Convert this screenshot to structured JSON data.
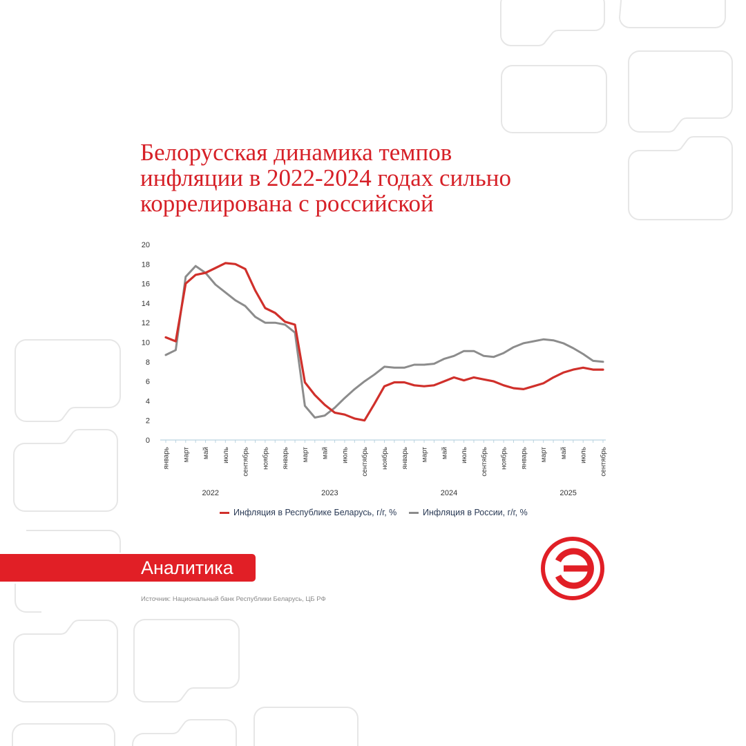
{
  "title_lines": [
    "Белорусская динамика темпов",
    "инфляции в 2022-2024 годах сильно",
    "коррелирована с российской"
  ],
  "badge": "Аналитика",
  "source": "Источник: Национальный банк Республики Беларусь, ЦБ РФ",
  "logo_icon": "e-logo-icon",
  "colors": {
    "belarus": "#d0302b",
    "russia": "#8c8c8c",
    "accent": "#e11f26",
    "title": "#d62027",
    "axis": "#b9d3e0"
  },
  "chart_data": {
    "type": "line",
    "ylim": [
      0,
      20
    ],
    "yticks": [
      0,
      2,
      4,
      6,
      8,
      10,
      12,
      14,
      16,
      18,
      20
    ],
    "month_ticks": [
      {
        "index": 0,
        "label": "январь"
      },
      {
        "index": 2,
        "label": "март"
      },
      {
        "index": 4,
        "label": "май"
      },
      {
        "index": 6,
        "label": "июль"
      },
      {
        "index": 8,
        "label": "сентябрь"
      },
      {
        "index": 10,
        "label": "ноябрь"
      },
      {
        "index": 12,
        "label": "январь"
      },
      {
        "index": 14,
        "label": "март"
      },
      {
        "index": 16,
        "label": "май"
      },
      {
        "index": 18,
        "label": "июль"
      },
      {
        "index": 20,
        "label": "сентябрь"
      },
      {
        "index": 22,
        "label": "ноябрь"
      },
      {
        "index": 24,
        "label": "январь"
      },
      {
        "index": 26,
        "label": "март"
      },
      {
        "index": 28,
        "label": "май"
      },
      {
        "index": 30,
        "label": "июль"
      },
      {
        "index": 32,
        "label": "сентябрь"
      },
      {
        "index": 34,
        "label": "ноябрь"
      },
      {
        "index": 36,
        "label": "январь"
      },
      {
        "index": 38,
        "label": "март"
      },
      {
        "index": 40,
        "label": "май"
      },
      {
        "index": 42,
        "label": "июль"
      },
      {
        "index": 44,
        "label": "сентябрь"
      }
    ],
    "year_labels": [
      {
        "label": "2022",
        "center_index": 4.5
      },
      {
        "label": "2023",
        "center_index": 16.5
      },
      {
        "label": "2024",
        "center_index": 28.5
      },
      {
        "label": "2025",
        "center_index": 40.5
      }
    ],
    "series": [
      {
        "name": "Инфляция в Республике Беларусь, г/г, %",
        "values": [
          10.5,
          10.1,
          16.0,
          16.9,
          17.1,
          17.6,
          18.1,
          18.0,
          17.5,
          15.3,
          13.5,
          13.0,
          12.1,
          11.8,
          5.9,
          4.6,
          3.6,
          2.8,
          2.6,
          2.2,
          2.0,
          3.7,
          5.5,
          5.9,
          5.9,
          5.6,
          5.5,
          5.6,
          6.0,
          6.4,
          6.1,
          6.4,
          6.2,
          6.0,
          5.6,
          5.3,
          5.2,
          5.5,
          5.8,
          6.4,
          6.9,
          7.2,
          7.4,
          7.2,
          7.2
        ]
      },
      {
        "name": "Инфляция в России, г/г, %",
        "values": [
          8.7,
          9.2,
          16.7,
          17.8,
          17.1,
          15.9,
          15.1,
          14.3,
          13.7,
          12.6,
          12.0,
          12.0,
          11.8,
          11.0,
          3.5,
          2.3,
          2.5,
          3.3,
          4.3,
          5.2,
          6.0,
          6.7,
          7.5,
          7.4,
          7.4,
          7.7,
          7.7,
          7.8,
          8.3,
          8.6,
          9.1,
          9.1,
          8.6,
          8.5,
          8.9,
          9.5,
          9.9,
          10.1,
          10.3,
          10.2,
          9.9,
          9.4,
          8.8,
          8.1,
          8.0
        ]
      }
    ]
  }
}
